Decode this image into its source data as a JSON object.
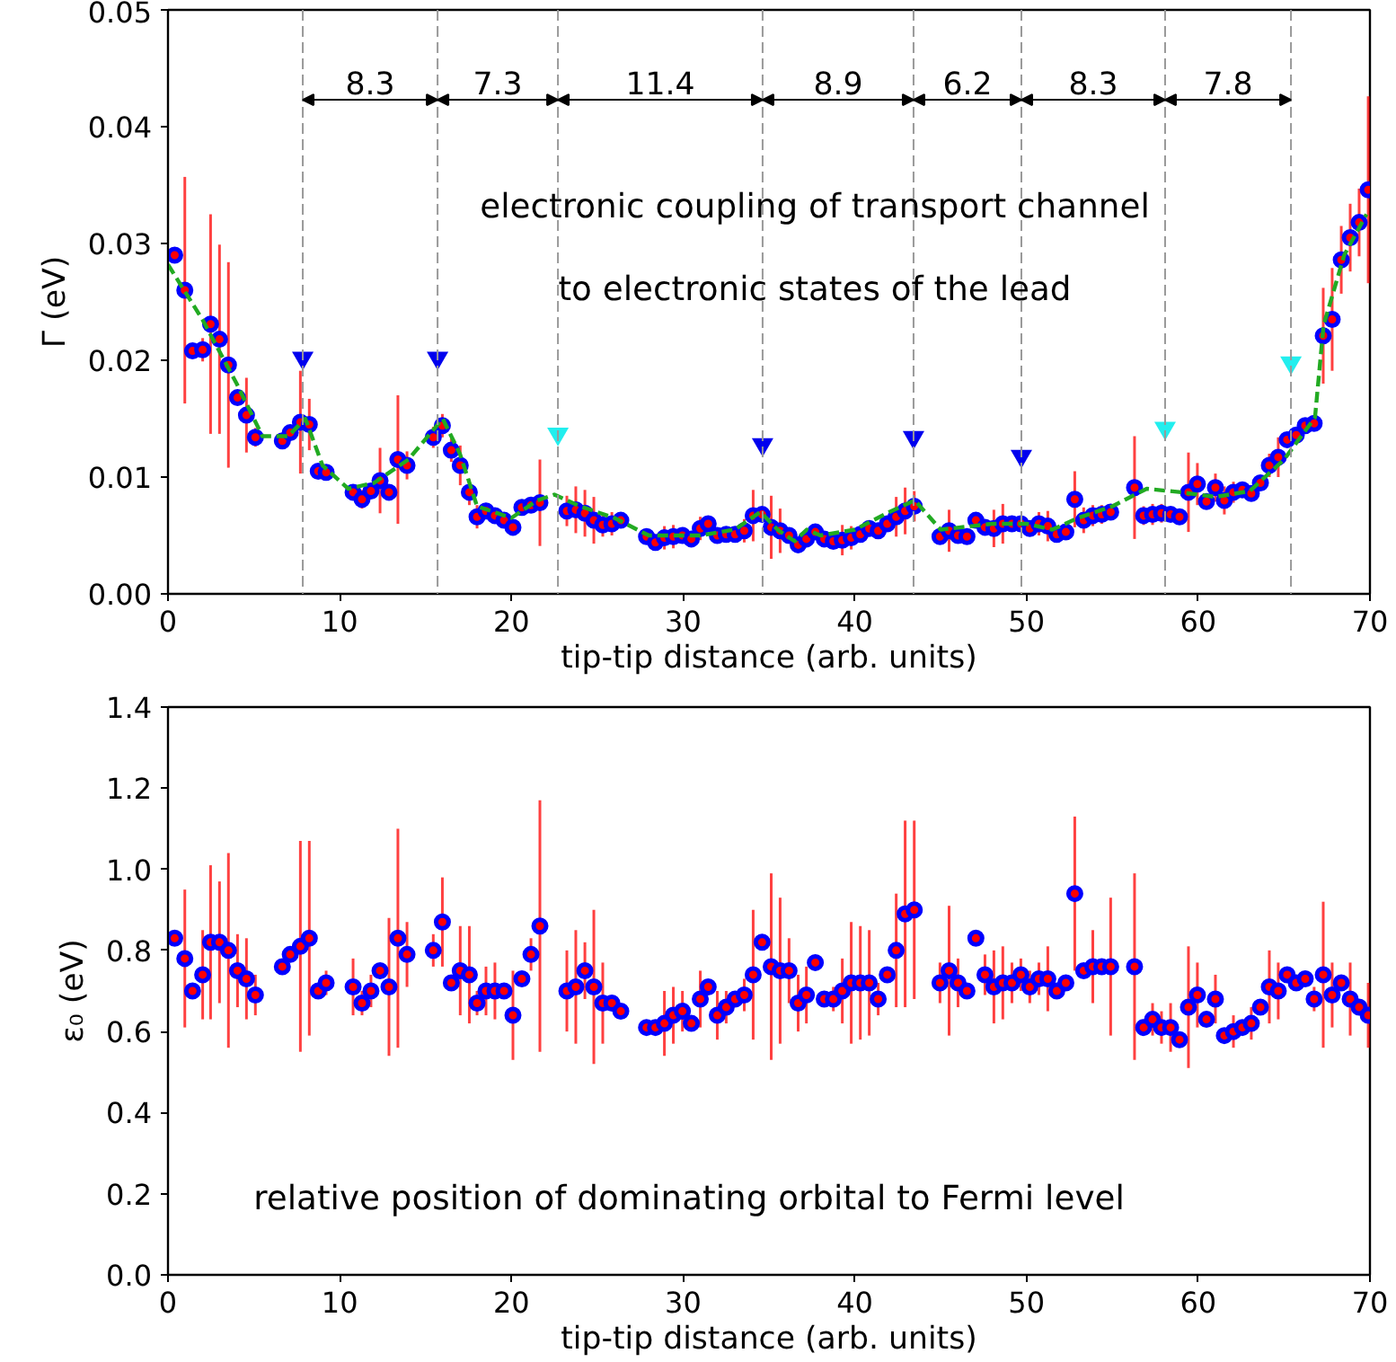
{
  "chart_data": [
    {
      "type": "scatter",
      "xlabel": "tip-tip distance (arb. units)",
      "ylabel": "Γ (eV)",
      "xlim": [
        0,
        70
      ],
      "xticks": [
        0,
        10,
        20,
        30,
        40,
        50,
        60,
        70
      ],
      "ylim": [
        0,
        0.05
      ],
      "yticks": [
        {
          "value": 0,
          "label": "0.00"
        },
        {
          "value": 0.01,
          "label": "0.01"
        },
        {
          "value": 0.02,
          "label": "0.02"
        },
        {
          "value": 0.03,
          "label": "0.03"
        },
        {
          "value": 0.04,
          "label": "0.04"
        },
        {
          "value": 0.05,
          "label": "0.05"
        }
      ],
      "grid": false,
      "series": [
        {
          "marker": "circle",
          "color": "#0000ff",
          "x": [
            0.39,
            0.98,
            1.43,
            2.02,
            2.48,
            3.0,
            3.52,
            4.05,
            4.57,
            5.09,
            6.66,
            7.12,
            7.71,
            8.23,
            8.75,
            9.21,
            10.78,
            11.3,
            11.82,
            12.35,
            12.87,
            13.39,
            13.92,
            15.45,
            15.98,
            16.5,
            17.02,
            17.55,
            18.0,
            18.52,
            19.04,
            19.57,
            20.09,
            20.61,
            21.14,
            21.66,
            23.23,
            23.75,
            24.28,
            24.8,
            25.32,
            25.85,
            26.37,
            27.87,
            28.39,
            28.91,
            29.43,
            29.96,
            30.48,
            31.0,
            31.46,
            31.99,
            32.51,
            33.03,
            33.56,
            34.08,
            34.6,
            35.13,
            35.65,
            36.17,
            36.7,
            37.18,
            37.7,
            38.22,
            38.75,
            39.27,
            39.79,
            40.32,
            40.84,
            41.36,
            41.89,
            42.41,
            42.93,
            43.46,
            44.96,
            45.49,
            46.01,
            46.53,
            47.05,
            47.58,
            48.1,
            48.62,
            49.15,
            49.67,
            50.19,
            50.72,
            51.24,
            51.76,
            52.29,
            52.81,
            53.33,
            53.86,
            54.38,
            54.9,
            56.29,
            56.82,
            57.34,
            57.86,
            58.39,
            58.91,
            59.43,
            59.95,
            60.48,
            61.0,
            61.52,
            62.05,
            62.57,
            63.09,
            63.62,
            64.14,
            64.66,
            65.18,
            65.71,
            66.23,
            66.75,
            67.28,
            67.8,
            68.33,
            68.85,
            69.37,
            69.9
          ],
          "values": [
            0.029,
            0.026,
            0.0208,
            0.0209,
            0.0231,
            0.0218,
            0.0196,
            0.0168,
            0.0153,
            0.0134,
            0.0131,
            0.0138,
            0.0147,
            0.0145,
            0.0105,
            0.0104,
            0.0087,
            0.0081,
            0.0088,
            0.0097,
            0.0087,
            0.0115,
            0.011,
            0.0134,
            0.0144,
            0.0123,
            0.011,
            0.0087,
            0.0066,
            0.0071,
            0.0067,
            0.0063,
            0.0057,
            0.0074,
            0.0076,
            0.0078,
            0.0071,
            0.0072,
            0.0069,
            0.0063,
            0.0059,
            0.006,
            0.0063,
            0.0049,
            0.0044,
            0.0048,
            0.0049,
            0.005,
            0.0047,
            0.0056,
            0.006,
            0.005,
            0.0051,
            0.0051,
            0.0054,
            0.0067,
            0.0068,
            0.0057,
            0.0054,
            0.005,
            0.0042,
            0.0047,
            0.0053,
            0.0047,
            0.0045,
            0.0046,
            0.0048,
            0.0051,
            0.0056,
            0.0054,
            0.006,
            0.0066,
            0.0071,
            0.0075,
            0.0049,
            0.0054,
            0.005,
            0.0049,
            0.0063,
            0.0057,
            0.0056,
            0.006,
            0.006,
            0.006,
            0.0056,
            0.006,
            0.0058,
            0.0051,
            0.0053,
            0.0081,
            0.0063,
            0.0067,
            0.0068,
            0.007,
            0.0091,
            0.0067,
            0.0068,
            0.0069,
            0.0068,
            0.0066,
            0.0087,
            0.0094,
            0.0079,
            0.0091,
            0.008,
            0.0087,
            0.0089,
            0.0086,
            0.0095,
            0.011,
            0.0117,
            0.0132,
            0.0136,
            0.0144,
            0.0146,
            0.0221,
            0.0235,
            0.0286,
            0.0305,
            0.0318,
            0.0346
          ],
          "errors": [
            null,
            0.0097,
            null,
            0.001,
            0.0094,
            0.0081,
            0.0088,
            null,
            0.0032,
            0.0008,
            null,
            null,
            0.0044,
            0.0022,
            null,
            null,
            null,
            0.0008,
            null,
            0.0028,
            null,
            0.0055,
            0.0012,
            0.0009,
            0.001,
            0.001,
            0.0017,
            0.0011,
            0.001,
            null,
            null,
            null,
            null,
            null,
            0.0006,
            0.0037,
            0.0013,
            0.002,
            0.002,
            0.002,
            0.001,
            0.001,
            null,
            null,
            null,
            0.001,
            0.001,
            null,
            null,
            0.001,
            null,
            null,
            null,
            null,
            0.001,
            0.0022,
            null,
            0.0027,
            0.0019,
            null,
            null,
            null,
            null,
            null,
            null,
            0.0013,
            0.001,
            null,
            null,
            null,
            null,
            0.0017,
            0.002,
            0.0013,
            null,
            0.0018,
            null,
            null,
            null,
            null,
            0.0016,
            0.0017,
            null,
            null,
            null,
            0.001,
            0.0013,
            null,
            null,
            0.0024,
            0.0011,
            0.0009,
            0.0008,
            null,
            0.0044,
            0.0008,
            0.0009,
            0.0008,
            0.0006,
            null,
            0.0034,
            0.0018,
            null,
            0.0012,
            0.0012,
            0.0009,
            0.0006,
            null,
            null,
            0.001,
            0.0017,
            null,
            null,
            null,
            null,
            0.0041,
            0.0044,
            0.0029,
            0.0029,
            0.0029,
            0.008
          ]
        },
        {
          "type": "line",
          "color": "#22aa22",
          "line_style": "dashed",
          "x": [
            0,
            2,
            4,
            5.5,
            7,
            8,
            9,
            10.5,
            12,
            14,
            16,
            17,
            18,
            20,
            21.5,
            22.5,
            24,
            26,
            28,
            31,
            33,
            34.5,
            35.5,
            36.5,
            37.2,
            38,
            40,
            42,
            43.5,
            45,
            48,
            50,
            51.5,
            53,
            55,
            57,
            59,
            61,
            63,
            65,
            66.8,
            67.3,
            68.5,
            69.8
          ],
          "values": [
            0.0282,
            0.0235,
            0.018,
            0.0135,
            0.0135,
            0.015,
            0.011,
            0.009,
            0.0095,
            0.0115,
            0.015,
            0.012,
            0.0075,
            0.0065,
            0.008,
            0.0085,
            0.0075,
            0.0065,
            0.005,
            0.005,
            0.0055,
            0.007,
            0.0055,
            0.0045,
            0.0055,
            0.005,
            0.0055,
            0.007,
            0.008,
            0.0055,
            0.006,
            0.006,
            0.0055,
            0.0065,
            0.0075,
            0.009,
            0.0087,
            0.0083,
            0.0088,
            0.0115,
            0.0151,
            0.023,
            0.029,
            0.0325
          ]
        },
        {
          "type": "scatter",
          "marker": "triangle",
          "color": "#0000ee",
          "x": [
            7.85,
            15.7,
            34.63,
            43.42,
            49.7
          ],
          "values": [
            0.0202,
            0.0202,
            0.0128,
            0.0134,
            0.0118
          ]
        },
        {
          "type": "scatter",
          "marker": "triangle",
          "color": "#22eeee",
          "x": [
            22.71,
            58.07,
            65.4
          ],
          "values": [
            0.0137,
            0.0142,
            0.0198
          ]
        }
      ],
      "ref_lines": [
        {
          "axis": "x",
          "value": 7.85,
          "color": "#999999",
          "line_style": "dashed"
        },
        {
          "axis": "x",
          "value": 15.7,
          "color": "#999999",
          "line_style": "dashed"
        },
        {
          "axis": "x",
          "value": 22.71,
          "color": "#999999",
          "line_style": "dashed"
        },
        {
          "axis": "x",
          "value": 34.63,
          "color": "#999999",
          "line_style": "dashed"
        },
        {
          "axis": "x",
          "value": 43.42,
          "color": "#999999",
          "line_style": "dashed"
        },
        {
          "axis": "x",
          "value": 49.7,
          "color": "#999999",
          "line_style": "dashed"
        },
        {
          "axis": "x",
          "value": 58.07,
          "color": "#999999",
          "line_style": "dashed"
        },
        {
          "axis": "x",
          "value": 65.4,
          "color": "#999999",
          "line_style": "dashed"
        }
      ],
      "annotations": [
        "8.3",
        "7.3",
        "11.4",
        "8.9",
        "6.2",
        "8.3",
        "7.8",
        "electronic coupling of transport channel",
        "to electronic states of the lead"
      ]
    },
    {
      "type": "scatter",
      "xlabel": "tip-tip distance (arb. units)",
      "ylabel": "ε₀ (eV)",
      "xlim": [
        0,
        70
      ],
      "xticks": [
        0,
        10,
        20,
        30,
        40,
        50,
        60,
        70
      ],
      "ylim": [
        0,
        1.4
      ],
      "yticks": [
        {
          "value": 0,
          "label": "0.0"
        },
        {
          "value": 0.2,
          "label": "0.2"
        },
        {
          "value": 0.4,
          "label": "0.4"
        },
        {
          "value": 0.6,
          "label": "0.6"
        },
        {
          "value": 0.8,
          "label": "0.8"
        },
        {
          "value": 1.0,
          "label": "1.0"
        },
        {
          "value": 1.2,
          "label": "1.2"
        },
        {
          "value": 1.4,
          "label": "1.4"
        }
      ],
      "grid": false,
      "series": [
        {
          "marker": "circle",
          "color": "#0000ff",
          "x": [
            0.39,
            0.98,
            1.43,
            2.02,
            2.48,
            3.0,
            3.52,
            4.05,
            4.57,
            5.09,
            6.66,
            7.12,
            7.71,
            8.23,
            8.75,
            9.21,
            10.78,
            11.3,
            11.82,
            12.35,
            12.87,
            13.39,
            13.92,
            15.45,
            15.98,
            16.5,
            17.02,
            17.55,
            18.0,
            18.52,
            19.04,
            19.57,
            20.09,
            20.61,
            21.14,
            21.66,
            23.23,
            23.75,
            24.28,
            24.8,
            25.32,
            25.85,
            26.37,
            27.87,
            28.39,
            28.91,
            29.43,
            29.96,
            30.48,
            31.0,
            31.46,
            31.99,
            32.51,
            33.03,
            33.56,
            34.08,
            34.6,
            35.13,
            35.65,
            36.17,
            36.7,
            37.18,
            37.7,
            38.22,
            38.75,
            39.27,
            39.79,
            40.32,
            40.84,
            41.36,
            41.89,
            42.41,
            42.93,
            43.46,
            44.96,
            45.49,
            46.01,
            46.53,
            47.05,
            47.58,
            48.1,
            48.62,
            49.15,
            49.67,
            50.19,
            50.72,
            51.24,
            51.76,
            52.29,
            52.81,
            53.33,
            53.86,
            54.38,
            54.9,
            56.29,
            56.82,
            57.34,
            57.86,
            58.39,
            58.91,
            59.43,
            59.95,
            60.48,
            61.0,
            61.52,
            62.05,
            62.57,
            63.09,
            63.62,
            64.14,
            64.66,
            65.18,
            65.71,
            66.23,
            66.75,
            67.28,
            67.8,
            68.33,
            68.85,
            69.37,
            69.9
          ],
          "values": [
            0.83,
            0.78,
            0.7,
            0.74,
            0.82,
            0.82,
            0.8,
            0.75,
            0.73,
            0.69,
            0.76,
            0.79,
            0.81,
            0.83,
            0.7,
            0.72,
            0.71,
            0.67,
            0.7,
            0.75,
            0.71,
            0.83,
            0.79,
            0.8,
            0.87,
            0.72,
            0.75,
            0.74,
            0.67,
            0.7,
            0.7,
            0.7,
            0.64,
            0.73,
            0.79,
            0.86,
            0.7,
            0.71,
            0.75,
            0.71,
            0.67,
            0.67,
            0.65,
            0.61,
            0.61,
            0.62,
            0.64,
            0.65,
            0.62,
            0.68,
            0.71,
            0.64,
            0.66,
            0.68,
            0.69,
            0.74,
            0.82,
            0.76,
            0.75,
            0.75,
            0.67,
            0.69,
            0.77,
            0.68,
            0.68,
            0.7,
            0.72,
            0.72,
            0.72,
            0.68,
            0.74,
            0.8,
            0.89,
            0.9,
            0.72,
            0.75,
            0.72,
            0.7,
            0.83,
            0.74,
            0.71,
            0.72,
            0.72,
            0.74,
            0.71,
            0.73,
            0.73,
            0.7,
            0.72,
            0.94,
            0.75,
            0.76,
            0.76,
            0.76,
            0.76,
            0.61,
            0.63,
            0.61,
            0.61,
            0.58,
            0.66,
            0.69,
            0.63,
            0.68,
            0.59,
            0.6,
            0.61,
            0.62,
            0.66,
            0.71,
            0.7,
            0.74,
            0.72,
            0.73,
            0.68,
            0.74,
            0.69,
            0.72,
            0.68,
            0.66,
            0.64
          ],
          "errors": [
            null,
            0.17,
            null,
            0.11,
            0.19,
            0.15,
            0.24,
            0.09,
            0.1,
            0.05,
            null,
            null,
            0.26,
            0.24,
            null,
            0.03,
            0.07,
            0.03,
            0.04,
            null,
            0.17,
            0.27,
            0.08,
            0.04,
            0.11,
            null,
            0.11,
            0.12,
            0.03,
            0.06,
            0.07,
            null,
            0.11,
            null,
            0.04,
            0.31,
            0.1,
            0.14,
            0.07,
            0.19,
            0.1,
            null,
            null,
            null,
            null,
            0.08,
            0.07,
            0.05,
            null,
            0.07,
            null,
            0.06,
            0.04,
            null,
            0.04,
            0.16,
            null,
            0.23,
            0.18,
            0.08,
            0.07,
            0.07,
            null,
            null,
            0.03,
            0.08,
            0.15,
            0.14,
            0.13,
            0.04,
            null,
            0.14,
            0.23,
            0.22,
            0.05,
            0.16,
            0.06,
            null,
            null,
            0.05,
            0.09,
            0.09,
            0.05,
            0.04,
            0.04,
            0.04,
            0.08,
            null,
            null,
            0.19,
            null,
            0.09,
            null,
            0.17,
            0.23,
            null,
            0.04,
            0.04,
            0.06,
            null,
            0.15,
            0.08,
            null,
            0.06,
            null,
            0.04,
            null,
            0.04,
            null,
            0.09,
            0.07,
            null,
            null,
            null,
            0.03,
            0.18,
            0.08,
            null,
            0.09,
            null,
            0.08
          ]
        }
      ],
      "annotations": [
        "relative position of dominating orbital to Fermi level"
      ]
    }
  ]
}
